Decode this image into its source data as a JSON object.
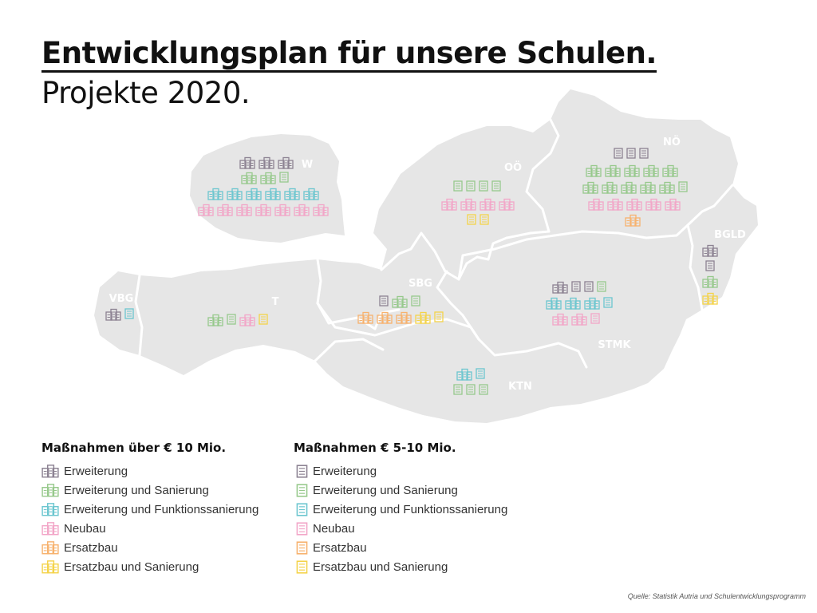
{
  "title": "Entwicklungsplan für unsere Schulen.",
  "subtitle": "Projekte 2020.",
  "colors": {
    "map_fill": "#e6e6e6",
    "border": "#ffffff",
    "region_label": "#ffffff",
    "erweiterung": "#8c8292",
    "erweiterung_sanierung": "#97c98c",
    "funktionssanierung": "#6cc6cf",
    "neubau": "#f2a6c8",
    "ersatzbau": "#f7b26e",
    "ersatzbau_sanierung": "#f4d34a"
  },
  "regions": [
    {
      "id": "W",
      "label": "W"
    },
    {
      "id": "OO",
      "label": "OÖ"
    },
    {
      "id": "NO",
      "label": "NÖ"
    },
    {
      "id": "BGLD",
      "label": "BGLD"
    },
    {
      "id": "VBG",
      "label": "VBG"
    },
    {
      "id": "T",
      "label": "T"
    },
    {
      "id": "SBG",
      "label": "SBG"
    },
    {
      "id": "STMK",
      "label": "STMK"
    },
    {
      "id": "KTN",
      "label": "KTN"
    }
  ],
  "legend": {
    "left": {
      "title": "Maßnahmen über € 10 Mio.",
      "icon_type": "large",
      "items": [
        {
          "label": "Erweiterung",
          "color_key": "erweiterung"
        },
        {
          "label": "Erweiterung und Sanierung",
          "color_key": "erweiterung_sanierung"
        },
        {
          "label": "Erweiterung und Funktionssanierung",
          "color_key": "funktionssanierung"
        },
        {
          "label": "Neubau",
          "color_key": "neubau"
        },
        {
          "label": "Ersatzbau",
          "color_key": "ersatzbau"
        },
        {
          "label": "Ersatzbau und Sanierung",
          "color_key": "ersatzbau_sanierung"
        }
      ]
    },
    "right": {
      "title": "Maßnahmen € 5-10 Mio.",
      "icon_type": "small",
      "items": [
        {
          "label": "Erweiterung",
          "color_key": "erweiterung"
        },
        {
          "label": "Erweiterung und Sanierung",
          "color_key": "erweiterung_sanierung"
        },
        {
          "label": "Erweiterung und Funktionssanierung",
          "color_key": "funktionssanierung"
        },
        {
          "label": "Neubau",
          "color_key": "neubau"
        },
        {
          "label": "Ersatzbau",
          "color_key": "ersatzbau"
        },
        {
          "label": "Ersatzbau und Sanierung",
          "color_key": "ersatzbau_sanierung"
        }
      ]
    }
  },
  "source": "Quelle: Statistik Autria und Schulentwicklungsprogramm"
}
